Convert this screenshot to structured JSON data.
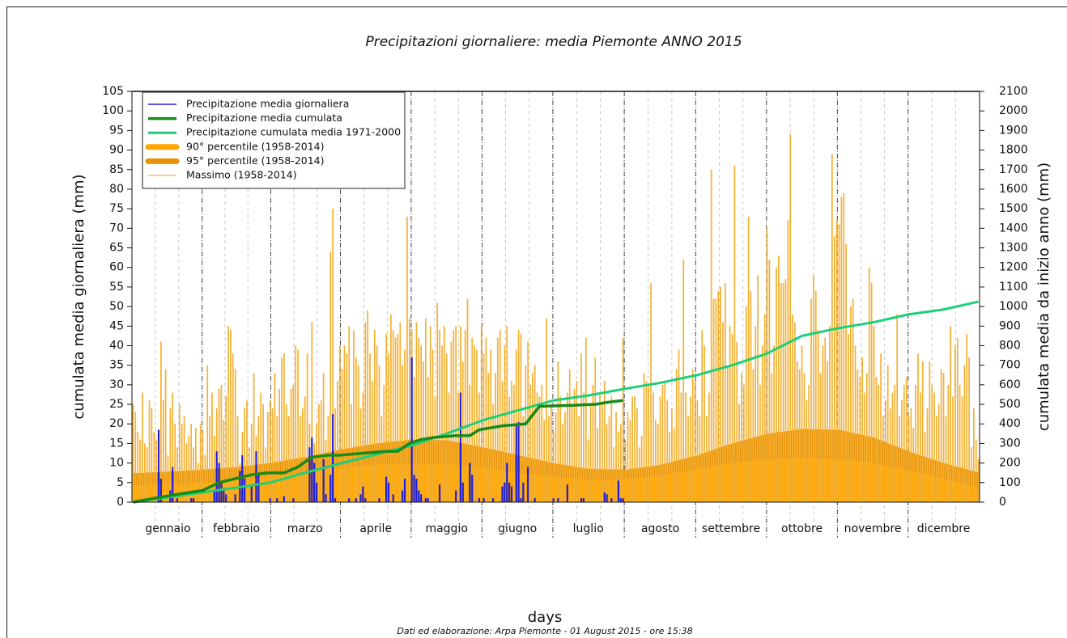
{
  "chart_data": {
    "type": "combo",
    "title": "Precipitazioni giornaliere: media Piemonte ANNO 2015",
    "xlabel": "days",
    "ylabel": "cumulata media giornaliera (mm)",
    "y2label": "cumulata media da inizio anno (mm)",
    "footnote": "Dati ed elaborazione: Arpa Piemonte - 01 August 2015 - ore 15:38",
    "xlim": [
      0.5,
      365.5
    ],
    "ylim": [
      0,
      105
    ],
    "y2lim": [
      0,
      2100
    ],
    "xticks": [
      {
        "value": 16,
        "label": "gennaio"
      },
      {
        "value": 45.5,
        "label": "febbraio"
      },
      {
        "value": 75,
        "label": "marzo"
      },
      {
        "value": 105.5,
        "label": "aprile"
      },
      {
        "value": 136,
        "label": "maggio"
      },
      {
        "value": 166.5,
        "label": "giugno"
      },
      {
        "value": 197,
        "label": "luglio"
      },
      {
        "value": 228,
        "label": "agosto"
      },
      {
        "value": 258.5,
        "label": "settembre"
      },
      {
        "value": 289,
        "label": "ottobre"
      },
      {
        "value": 319.5,
        "label": "novembre"
      },
      {
        "value": 350,
        "label": "dicembre"
      }
    ],
    "yticks": [
      0,
      5,
      10,
      15,
      20,
      25,
      30,
      35,
      40,
      45,
      50,
      55,
      60,
      65,
      70,
      75,
      80,
      85,
      90,
      95,
      100,
      105
    ],
    "y2ticks": [
      0,
      100,
      200,
      300,
      400,
      500,
      600,
      700,
      800,
      900,
      1000,
      1100,
      1200,
      1300,
      1400,
      1500,
      1600,
      1700,
      1800,
      1900,
      2000,
      2100
    ],
    "legend": "upper left",
    "series": [
      {
        "name": "Precipitazione media giornaliera",
        "kind": "bar",
        "color": "#2020d8",
        "axis": "y",
        "x": [
          12,
          13,
          17,
          18,
          20,
          26,
          27,
          36,
          37,
          38,
          39,
          40,
          41,
          45,
          47,
          48,
          49,
          52,
          54,
          55,
          60,
          63,
          66,
          70,
          77,
          78,
          79,
          80,
          83,
          84,
          86,
          87,
          88,
          94,
          97,
          99,
          100,
          101,
          107,
          110,
          111,
          113,
          117,
          118,
          121,
          122,
          123,
          124,
          125,
          127,
          128,
          133,
          140,
          142,
          143,
          146,
          147,
          150,
          152,
          156,
          160,
          161,
          162,
          163,
          164,
          166,
          167,
          168,
          169,
          171,
          174,
          182,
          184,
          188,
          194,
          195,
          204,
          205,
          207,
          210,
          211,
          212
        ],
        "values": [
          18.5,
          6,
          3,
          9,
          1,
          1,
          1,
          3,
          13,
          10,
          5,
          3,
          2,
          2,
          8,
          12,
          6,
          4,
          13,
          7,
          1,
          1,
          1.5,
          1,
          14,
          16.5,
          10,
          5,
          11,
          2,
          7,
          22.5,
          1,
          1,
          1,
          2,
          4,
          1,
          1,
          6.5,
          5,
          2,
          3,
          6,
          37,
          7,
          6,
          3,
          2,
          1,
          1,
          4.5,
          3,
          28,
          5,
          10,
          7,
          1,
          1,
          1,
          4,
          5,
          10,
          5,
          4,
          19.5,
          20.5,
          1,
          5,
          9,
          1,
          1,
          1,
          4.5,
          1,
          1,
          2.5,
          2,
          1,
          5.5,
          1,
          1
        ]
      },
      {
        "name": "Precipitazione media cumulata",
        "kind": "line",
        "width": 3.5,
        "color": "#188a18",
        "axis": "y2",
        "x": [
          1,
          10,
          20,
          31,
          38,
          45,
          52,
          59,
          66,
          72,
          78,
          85,
          90,
          100,
          110,
          115,
          120,
          125,
          130,
          140,
          146,
          150,
          160,
          170,
          172,
          176,
          190,
          200,
          205,
          212
        ],
        "values": [
          0,
          20,
          40,
          60,
          100,
          120,
          140,
          150,
          150,
          180,
          230,
          240,
          240,
          250,
          260,
          260,
          300,
          320,
          330,
          340,
          340,
          370,
          390,
          400,
          430,
          490,
          495,
          500,
          510,
          520
        ]
      },
      {
        "name": "Precipitazione cumulata media 1971-2000",
        "kind": "line",
        "width": 3,
        "color": "#1ecf78",
        "axis": "y2",
        "x": [
          1,
          16,
          31,
          46,
          60,
          75,
          91,
          106,
          121,
          136,
          152,
          167,
          182,
          197,
          213,
          228,
          244,
          259,
          274,
          289,
          305,
          320,
          335,
          350,
          365
        ],
        "values": [
          0,
          25,
          50,
          75,
          100,
          150,
          200,
          245,
          290,
          350,
          420,
          470,
          520,
          545,
          580,
          610,
          650,
          700,
          760,
          850,
          890,
          920,
          960,
          985,
          1025
        ]
      },
      {
        "name": "90° percentile (1958-2014)",
        "kind": "area",
        "color": "#ffa500",
        "axis": "y",
        "x": [
          1,
          16,
          31,
          46,
          60,
          75,
          91,
          106,
          121,
          136,
          152,
          167,
          182,
          197,
          213,
          228,
          244,
          259,
          274,
          289,
          305,
          320,
          335,
          350,
          365
        ],
        "values": [
          4.3,
          4.5,
          5,
          5.5,
          6.5,
          7.5,
          8.8,
          9.6,
          10,
          9.8,
          8.8,
          7.5,
          6.5,
          5.8,
          5.9,
          6.8,
          8.5,
          10,
          11,
          11.3,
          11,
          10,
          8,
          6,
          3.7
        ]
      },
      {
        "name": "95° percentile (1958-2014)",
        "kind": "area",
        "color": "#e8920a",
        "axis": "y",
        "x": [
          1,
          16,
          31,
          46,
          60,
          75,
          91,
          106,
          121,
          136,
          152,
          167,
          182,
          197,
          213,
          228,
          244,
          259,
          274,
          289,
          305,
          320,
          335,
          350,
          365
        ],
        "values": [
          7.4,
          7.8,
          8.3,
          9,
          10,
          11.5,
          13.5,
          15,
          16,
          15.8,
          14,
          12,
          10,
          8.5,
          8.3,
          9.5,
          12,
          15,
          17.5,
          18.7,
          18.5,
          16.5,
          13,
          10,
          7.6
        ]
      },
      {
        "name": "Massimo (1958-2014)",
        "kind": "bar",
        "color": "#f5b030",
        "axis": "y",
        "x": [
          1,
          2,
          3,
          4,
          5,
          6,
          7,
          8,
          9,
          10,
          11,
          12,
          13,
          14,
          15,
          16,
          17,
          18,
          19,
          20,
          21,
          22,
          23,
          24,
          25,
          26,
          27,
          28,
          29,
          30,
          31,
          32,
          33,
          34,
          35,
          36,
          37,
          38,
          39,
          40,
          41,
          42,
          43,
          44,
          45,
          46,
          47,
          48,
          49,
          50,
          51,
          52,
          53,
          54,
          55,
          56,
          57,
          58,
          59,
          60,
          61,
          62,
          63,
          64,
          65,
          66,
          67,
          68,
          69,
          70,
          71,
          72,
          73,
          74,
          75,
          76,
          77,
          78,
          79,
          80,
          81,
          82,
          83,
          84,
          85,
          86,
          87,
          88,
          89,
          90,
          91,
          92,
          93,
          94,
          95,
          96,
          97,
          98,
          99,
          100,
          101,
          102,
          103,
          104,
          105,
          106,
          107,
          108,
          109,
          110,
          111,
          112,
          113,
          114,
          115,
          116,
          117,
          118,
          119,
          120,
          121,
          122,
          123,
          124,
          125,
          126,
          127,
          128,
          129,
          130,
          131,
          132,
          133,
          134,
          135,
          136,
          137,
          138,
          139,
          140,
          141,
          142,
          143,
          144,
          145,
          146,
          147,
          148,
          149,
          150,
          151,
          152,
          153,
          154,
          155,
          156,
          157,
          158,
          159,
          160,
          161,
          162,
          163,
          164,
          165,
          166,
          167,
          168,
          169,
          170,
          171,
          172,
          173,
          174,
          175,
          176,
          177,
          178,
          179,
          180,
          181,
          182,
          183,
          184,
          185,
          186,
          187,
          188,
          189,
          190,
          191,
          192,
          193,
          194,
          195,
          196,
          197,
          198,
          199,
          200,
          201,
          202,
          203,
          204,
          205,
          206,
          207,
          208,
          209,
          210,
          211,
          212,
          213,
          214,
          215,
          216,
          217,
          218,
          219,
          220,
          221,
          222,
          223,
          224,
          225,
          226,
          227,
          228,
          229,
          230,
          231,
          232,
          233,
          234,
          235,
          236,
          237,
          238,
          239,
          240,
          241,
          242,
          243,
          244,
          245,
          246,
          247,
          248,
          249,
          250,
          251,
          252,
          253,
          254,
          255,
          256,
          257,
          258,
          259,
          260,
          261,
          262,
          263,
          264,
          265,
          266,
          267,
          268,
          269,
          270,
          271,
          272,
          273,
          274,
          275,
          276,
          277,
          278,
          279,
          280,
          281,
          282,
          283,
          284,
          285,
          286,
          287,
          288,
          289,
          290,
          291,
          292,
          293,
          294,
          295,
          296,
          297,
          298,
          299,
          300,
          301,
          302,
          303,
          304,
          305,
          306,
          307,
          308,
          309,
          310,
          311,
          312,
          313,
          314,
          315,
          316,
          317,
          318,
          319,
          320,
          321,
          322,
          323,
          324,
          325,
          326,
          327,
          328,
          329,
          330,
          331,
          332,
          333,
          334,
          335,
          336,
          337,
          338,
          339,
          340,
          341,
          342,
          343,
          344,
          345,
          346,
          347,
          348,
          349,
          350,
          351,
          352,
          353,
          354,
          355,
          356,
          357,
          358,
          359,
          360,
          361,
          362,
          363,
          364,
          365
        ],
        "values": [
          25,
          23,
          18,
          16,
          28,
          15,
          14,
          26,
          24,
          18,
          16,
          17,
          41,
          26,
          34,
          12,
          24,
          28,
          20,
          14,
          25,
          20,
          22,
          15,
          17,
          20,
          14,
          19,
          10,
          20,
          18,
          12,
          35,
          22,
          28,
          17,
          24,
          29,
          30,
          21,
          27,
          45,
          44,
          38,
          34,
          22,
          10,
          18,
          24,
          26,
          14,
          20,
          33,
          17,
          22,
          28,
          25,
          14,
          23,
          26,
          24,
          33,
          22,
          29,
          37,
          38,
          25,
          22,
          29,
          30,
          40,
          39,
          22,
          24,
          27,
          38,
          20,
          46,
          15,
          20,
          25,
          26,
          33,
          16,
          22,
          64,
          75,
          24,
          31,
          40,
          34,
          40,
          38,
          45,
          25,
          44,
          37,
          35,
          24,
          28,
          46,
          49,
          38,
          31,
          44,
          40,
          35,
          22,
          30,
          43,
          38,
          48,
          44,
          42,
          43,
          46,
          35,
          39,
          73,
          47,
          44,
          32,
          46,
          42,
          40,
          36,
          47,
          32,
          45,
          39,
          27,
          51,
          44,
          40,
          45,
          38,
          28,
          41,
          44,
          45,
          28,
          45,
          36,
          44,
          52,
          30,
          42,
          40,
          39,
          28,
          45,
          38,
          42,
          33,
          39,
          25,
          33,
          42,
          44,
          31,
          40,
          45,
          27,
          31,
          30,
          39,
          44,
          43,
          22,
          35,
          41,
          30,
          33,
          35,
          28,
          27,
          30,
          21,
          47,
          22,
          25,
          18,
          23,
          36,
          27,
          20,
          23,
          28,
          34,
          25,
          29,
          31,
          22,
          38,
          28,
          42,
          16,
          25,
          30,
          37,
          19,
          28,
          25,
          31,
          20,
          22,
          27,
          14,
          23,
          18,
          20,
          42,
          16,
          23,
          21,
          27,
          27,
          24,
          14,
          17,
          33,
          31,
          30,
          56,
          28,
          21,
          20,
          27,
          30,
          31,
          26,
          18,
          24,
          19,
          34,
          39,
          28,
          62,
          28,
          22,
          27,
          34,
          31,
          26,
          22,
          44,
          40,
          22,
          28,
          85,
          52,
          52,
          54,
          55,
          46,
          56,
          35,
          45,
          43,
          86,
          41,
          25,
          33,
          30,
          50,
          73,
          54,
          34,
          45,
          58,
          30,
          40,
          48,
          70,
          62,
          33,
          40,
          60,
          63,
          56,
          56,
          57,
          72,
          94,
          48,
          46,
          36,
          34,
          40,
          33,
          26,
          30,
          52,
          58,
          54,
          44,
          33,
          40,
          42,
          36,
          45,
          89,
          68,
          72,
          71,
          78,
          79,
          66,
          43,
          50,
          52,
          40,
          34,
          32,
          37,
          28,
          33,
          60,
          56,
          45,
          32,
          30,
          38,
          22,
          26,
          35,
          24,
          28,
          30,
          48,
          22,
          26,
          30,
          32,
          22,
          24,
          19,
          30,
          38,
          28,
          36,
          18,
          24,
          36,
          30,
          28,
          22,
          25,
          34,
          33,
          22,
          30,
          45,
          27,
          40,
          42,
          30,
          27,
          35,
          43,
          37,
          14,
          24,
          16,
          11
        ]
      }
    ]
  }
}
